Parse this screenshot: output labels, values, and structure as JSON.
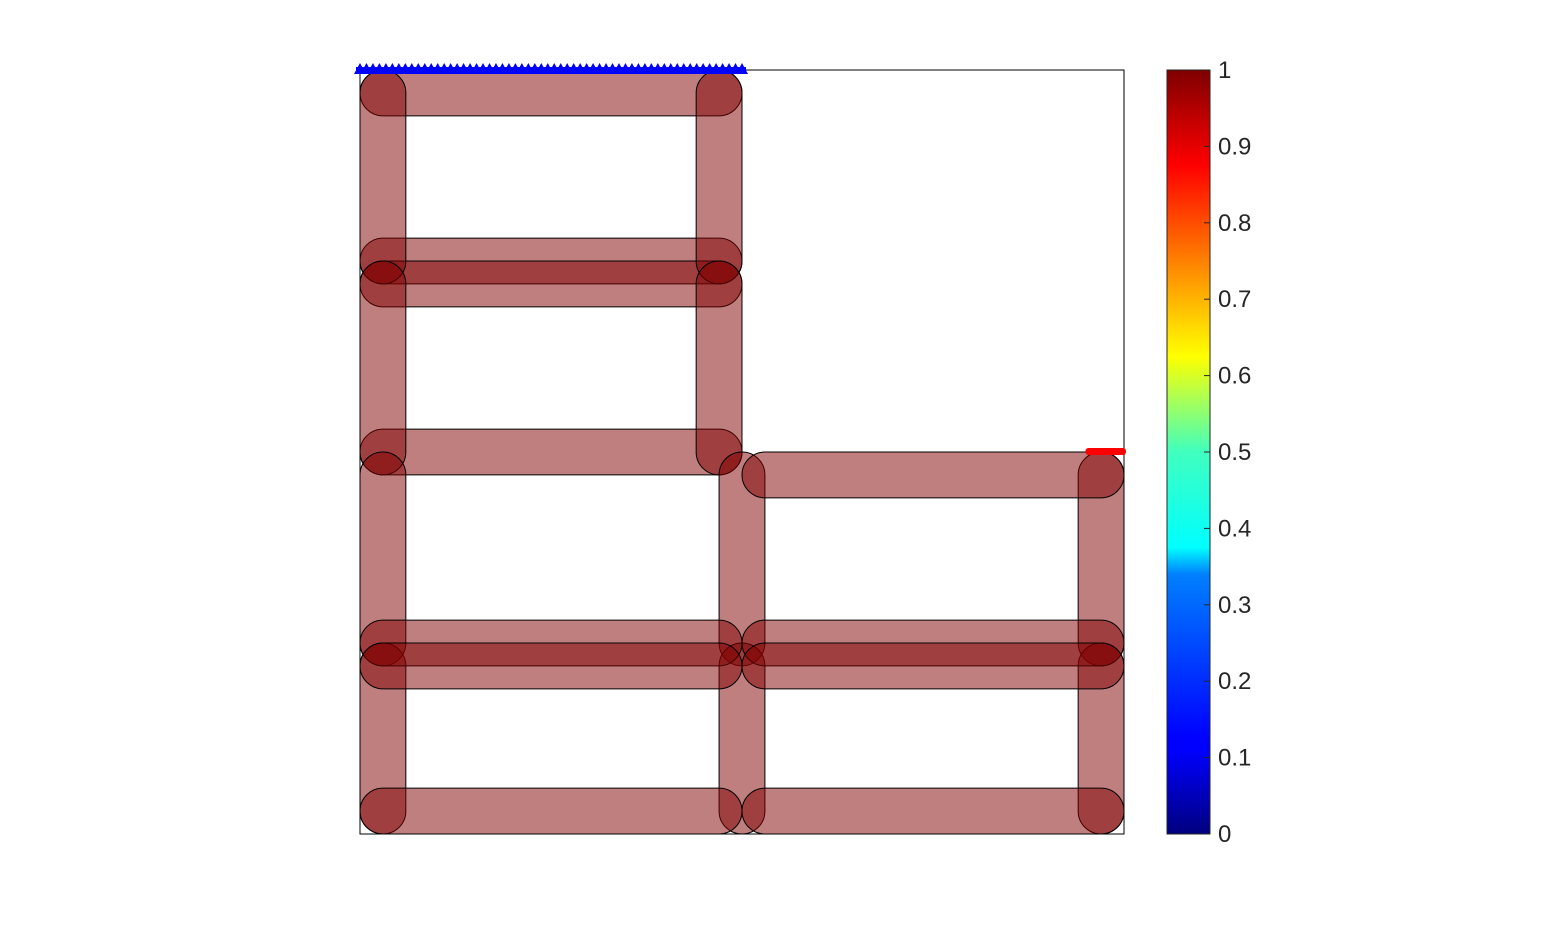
{
  "chart_data": {
    "type": "topology-layout",
    "domain": {
      "xlim": [
        0,
        2
      ],
      "ylim": [
        0,
        2
      ]
    },
    "member_thickness": 0.12,
    "member_color": "#800000",
    "member_opacity": 0.5,
    "members": [
      {
        "id": "top-bar-1",
        "x1": 0.06,
        "y1": 1.94,
        "x2": 0.94,
        "y2": 1.94
      },
      {
        "id": "top-bar-2",
        "x1": 0.06,
        "y1": 1.5,
        "x2": 0.94,
        "y2": 1.5
      },
      {
        "id": "top-bar-3",
        "x1": 0.06,
        "y1": 1.44,
        "x2": 0.94,
        "y2": 1.44
      },
      {
        "id": "top-bar-4",
        "x1": 0.06,
        "y1": 1.0,
        "x2": 0.94,
        "y2": 1.0
      },
      {
        "id": "top-left-post-1",
        "x1": 0.06,
        "y1": 1.5,
        "x2": 0.06,
        "y2": 1.94
      },
      {
        "id": "top-right-post-1",
        "x1": 0.94,
        "y1": 1.5,
        "x2": 0.94,
        "y2": 1.94
      },
      {
        "id": "top-left-post-2",
        "x1": 0.06,
        "y1": 1.0,
        "x2": 0.06,
        "y2": 1.44
      },
      {
        "id": "top-right-post-2",
        "x1": 0.94,
        "y1": 1.0,
        "x2": 0.94,
        "y2": 1.44
      },
      {
        "id": "left-post-3",
        "x1": 0.06,
        "y1": 0.5,
        "x2": 0.06,
        "y2": 0.94
      },
      {
        "id": "left-post-4",
        "x1": 0.06,
        "y1": 0.06,
        "x2": 0.06,
        "y2": 0.44
      },
      {
        "id": "mid-post-1",
        "x1": 1.0,
        "y1": 0.5,
        "x2": 1.0,
        "y2": 0.94
      },
      {
        "id": "mid-post-2",
        "x1": 1.0,
        "y1": 0.06,
        "x2": 1.0,
        "y2": 0.44
      },
      {
        "id": "right-post-1",
        "x1": 1.94,
        "y1": 0.5,
        "x2": 1.94,
        "y2": 0.94
      },
      {
        "id": "right-post-2",
        "x1": 1.94,
        "y1": 0.06,
        "x2": 1.94,
        "y2": 0.44
      },
      {
        "id": "bar-left-mid",
        "x1": 0.06,
        "y1": 0.5,
        "x2": 0.94,
        "y2": 0.5
      },
      {
        "id": "bar-left-mid-2",
        "x1": 0.06,
        "y1": 0.44,
        "x2": 0.94,
        "y2": 0.44
      },
      {
        "id": "bar-left-bottom",
        "x1": 0.06,
        "y1": 0.06,
        "x2": 0.94,
        "y2": 0.06
      },
      {
        "id": "bar-right-top",
        "x1": 1.06,
        "y1": 0.94,
        "x2": 1.94,
        "y2": 0.94
      },
      {
        "id": "bar-right-mid",
        "x1": 1.06,
        "y1": 0.5,
        "x2": 1.94,
        "y2": 0.5
      },
      {
        "id": "bar-right-mid-2",
        "x1": 1.06,
        "y1": 0.44,
        "x2": 1.94,
        "y2": 0.44
      },
      {
        "id": "bar-right-bottom",
        "x1": 1.06,
        "y1": 0.06,
        "x2": 1.94,
        "y2": 0.06
      }
    ],
    "fixed_support": {
      "x_from": 0.0,
      "x_to": 1.0,
      "y": 2.0,
      "count": 60,
      "color": "#0000ff"
    },
    "load_point": {
      "x_from": 1.92,
      "x_to": 2.0,
      "y": 1.0,
      "color": "#ff0000"
    },
    "colorbar": {
      "colormap": "jet",
      "limits": [
        0,
        1
      ],
      "ticks": [
        0,
        0.1,
        0.2,
        0.3,
        0.4,
        0.5,
        0.6,
        0.7,
        0.8,
        0.9,
        1
      ],
      "tick_labels": [
        "0",
        "0.1",
        "0.2",
        "0.3",
        "0.4",
        "0.5",
        "0.6",
        "0.7",
        "0.8",
        "0.9",
        "1"
      ]
    }
  }
}
